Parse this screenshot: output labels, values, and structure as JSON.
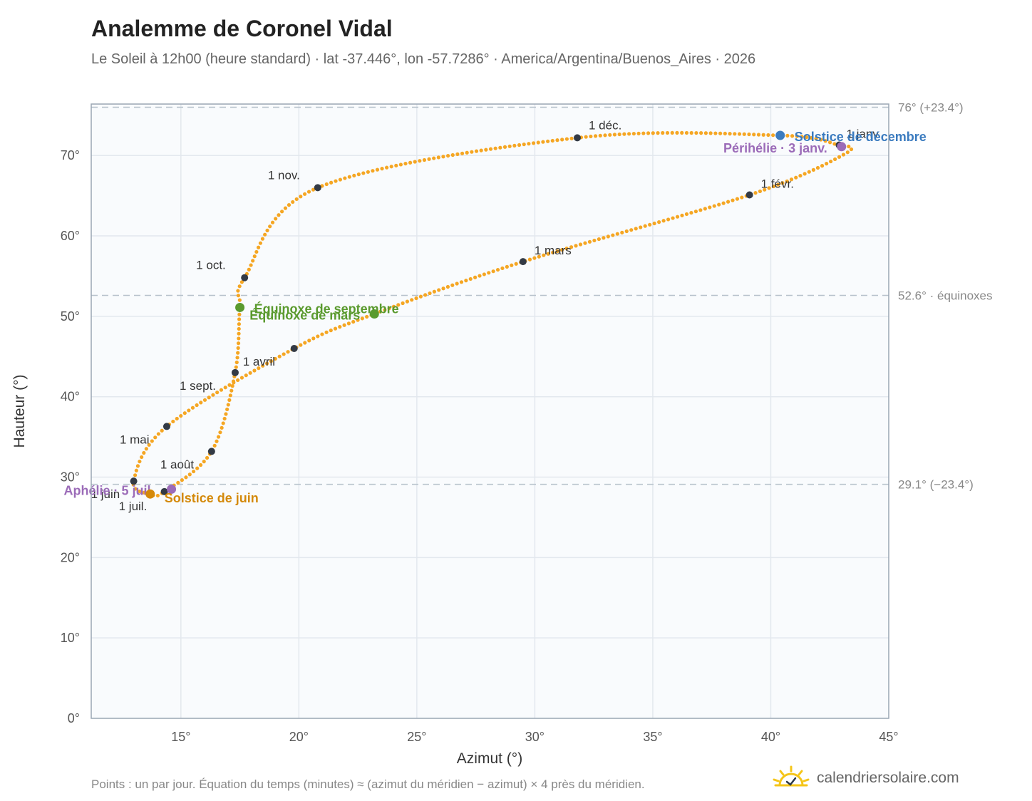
{
  "header": {
    "title": "Analemme de Coronel Vidal",
    "subtitle": "Le Soleil à 12h00 (heure standard) · lat -37.446°, lon -57.7286° · America/Argentina/Buenos_Aires · 2026"
  },
  "footer": {
    "note": "Points : un par jour. Équation du temps (minutes) ≈ (azimut du méridien − azimut) × 4 près du méridien.",
    "brand": "calendriersolaire.com",
    "brand_icon": "sun-logo-icon"
  },
  "colors": {
    "curve": "#f5a623",
    "month_marker": "#333a45",
    "equinox": "#5a9a2e",
    "solstice_june": "#d4890a",
    "solstice_december": "#3b7bbf",
    "apsis": "#9b6bb8",
    "plot_bg": "#f9fbfd",
    "grid": "#e3e8ee",
    "frame": "#9aa6b4",
    "ref_line": "#b7c2cc"
  },
  "chart_data": {
    "type": "scatter",
    "title": "Analemme de Coronel Vidal",
    "xlabel": "Azimut (°)",
    "ylabel": "Hauteur (°)",
    "xlim": [
      11.2,
      45
    ],
    "ylim": [
      0,
      76.4
    ],
    "x_ticks": [
      15,
      20,
      25,
      30,
      35,
      40,
      45
    ],
    "y_ticks": [
      0,
      10,
      20,
      30,
      40,
      50,
      60,
      70
    ],
    "tick_suffix": "°",
    "grid": true,
    "reference_lines": [
      {
        "value": 76.0,
        "label": "76° (+23.4°)"
      },
      {
        "value": 52.6,
        "label": "52.6° · équinoxes"
      },
      {
        "value": 29.1,
        "label": "29.1° (−23.4°)"
      }
    ],
    "series": [
      {
        "name": "daily",
        "path_keypoints": [
          {
            "x": 42.9,
            "y": 71.3
          },
          {
            "x": 43.2,
            "y": 70.3
          },
          {
            "x": 39.1,
            "y": 65.1
          },
          {
            "x": 29.5,
            "y": 56.8
          },
          {
            "x": 23.2,
            "y": 50.3
          },
          {
            "x": 19.8,
            "y": 46.0
          },
          {
            "x": 14.4,
            "y": 36.3
          },
          {
            "x": 13.0,
            "y": 29.5
          },
          {
            "x": 13.7,
            "y": 27.9
          },
          {
            "x": 14.3,
            "y": 28.2
          },
          {
            "x": 16.3,
            "y": 33.2
          },
          {
            "x": 17.3,
            "y": 43.0
          },
          {
            "x": 17.5,
            "y": 51.1
          },
          {
            "x": 17.7,
            "y": 54.8
          },
          {
            "x": 20.8,
            "y": 66.0
          },
          {
            "x": 31.8,
            "y": 72.2
          },
          {
            "x": 40.4,
            "y": 72.5
          },
          {
            "x": 42.9,
            "y": 71.3
          }
        ]
      }
    ],
    "month_markers": [
      {
        "label": "1 janv.",
        "x": 42.9,
        "y": 71.3
      },
      {
        "label": "1 févr.",
        "x": 39.1,
        "y": 65.1
      },
      {
        "label": "1 mars",
        "x": 29.5,
        "y": 56.8
      },
      {
        "label": "1 avril",
        "x": 19.8,
        "y": 46.0
      },
      {
        "label": "1 mai",
        "x": 14.4,
        "y": 36.3
      },
      {
        "label": "1 juin",
        "x": 13.0,
        "y": 29.5
      },
      {
        "label": "1 juil.",
        "x": 14.3,
        "y": 28.2
      },
      {
        "label": "1 août",
        "x": 16.3,
        "y": 33.2
      },
      {
        "label": "1 sept.",
        "x": 17.3,
        "y": 43.0
      },
      {
        "label": "1 oct.",
        "x": 17.7,
        "y": 54.8
      },
      {
        "label": "1 nov.",
        "x": 20.8,
        "y": 66.0
      },
      {
        "label": "1 déc.",
        "x": 31.8,
        "y": 72.2
      }
    ],
    "events": [
      {
        "label": "Solstice de décembre",
        "x": 40.4,
        "y": 72.5,
        "kind": "solstice_december"
      },
      {
        "label": "Périhélie · 3 janv.",
        "x": 43.0,
        "y": 71.1,
        "kind": "apsis"
      },
      {
        "label": "Équinoxe de septembre",
        "x": 17.5,
        "y": 51.1,
        "kind": "equinox"
      },
      {
        "label": "Équinoxe de mars",
        "x": 23.2,
        "y": 50.3,
        "kind": "equinox"
      },
      {
        "label": "Aphélie · 5 juil.",
        "x": 14.6,
        "y": 28.5,
        "kind": "apsis"
      },
      {
        "label": "Solstice de juin",
        "x": 13.7,
        "y": 27.9,
        "kind": "solstice_june"
      }
    ]
  }
}
